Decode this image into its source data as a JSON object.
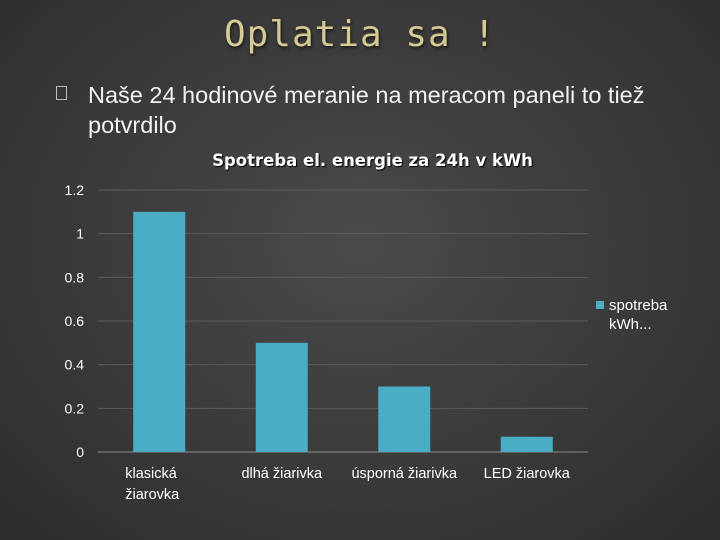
{
  "slide": {
    "title": "Oplatia sa !",
    "bullet": "Naše 24 hodinové meranie na meracom paneli to tiež potvrdilo"
  },
  "chart_data": {
    "type": "bar",
    "title": "Spotreba el. energie za 24h v kWh",
    "categories": [
      "klasická žiarovka",
      "dlhá žiarivka",
      "úsporná žiarivka",
      "LED žiarovka"
    ],
    "series": [
      {
        "name": "spotreba kWh...",
        "values": [
          1.1,
          0.5,
          0.3,
          0.07
        ]
      }
    ],
    "y_ticks": [
      "0",
      "0.2",
      "0.4",
      "0.6",
      "0.8",
      "1",
      "1.2"
    ],
    "ylim": [
      0,
      1.2
    ],
    "grid": true,
    "legend_position": "right",
    "bar_color": "#4bacc6",
    "xlabel": "",
    "ylabel": ""
  }
}
